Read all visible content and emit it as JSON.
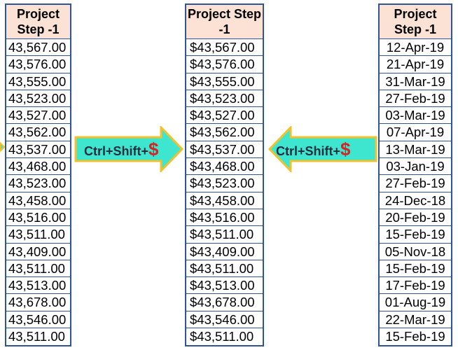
{
  "col1": {
    "header": "Project\nStep -1",
    "values": [
      "43,567.00",
      "43,576.00",
      "43,555.00",
      "43,523.00",
      "43,527.00",
      "43,562.00",
      "43,537.00",
      "43,468.00",
      "43,523.00",
      "43,458.00",
      "43,516.00",
      "43,511.00",
      "43,409.00",
      "43,511.00",
      "43,513.00",
      "43,678.00",
      "43,546.00",
      "43,511.00"
    ]
  },
  "col2": {
    "header": "Project Step\n-1",
    "values": [
      "$43,567.00",
      "$43,576.00",
      "$43,555.00",
      "$43,523.00",
      "$43,527.00",
      "$43,562.00",
      "$43,537.00",
      "$43,468.00",
      "$43,523.00",
      "$43,458.00",
      "$43,516.00",
      "$43,511.00",
      "$43,409.00",
      "$43,511.00",
      "$43,513.00",
      "$43,678.00",
      "$43,546.00",
      "$43,511.00"
    ]
  },
  "col3": {
    "header": "Project\nStep -1",
    "values": [
      "12-Apr-19",
      "21-Apr-19",
      "31-Mar-19",
      "27-Feb-19",
      "03-Mar-19",
      "07-Apr-19",
      "13-Mar-19",
      "03-Jan-19",
      "27-Feb-19",
      "24-Dec-18",
      "20-Feb-19",
      "15-Feb-19",
      "05-Nov-18",
      "15-Feb-19",
      "17-Feb-19",
      "01-Aug-19",
      "22-Mar-19",
      "15-Feb-19"
    ]
  },
  "arrow_right": {
    "label": "Ctrl+Shift+",
    "symbol": "$"
  },
  "arrow_left": {
    "label": "Ctrl+Shift+",
    "symbol": "$"
  },
  "colors": {
    "header_fill": "#fbe2d5",
    "border": "#2f5597",
    "arrow_fill": "#3ee6cf",
    "arrow_outline": "#f2c12e",
    "symbol": "#e02020"
  }
}
